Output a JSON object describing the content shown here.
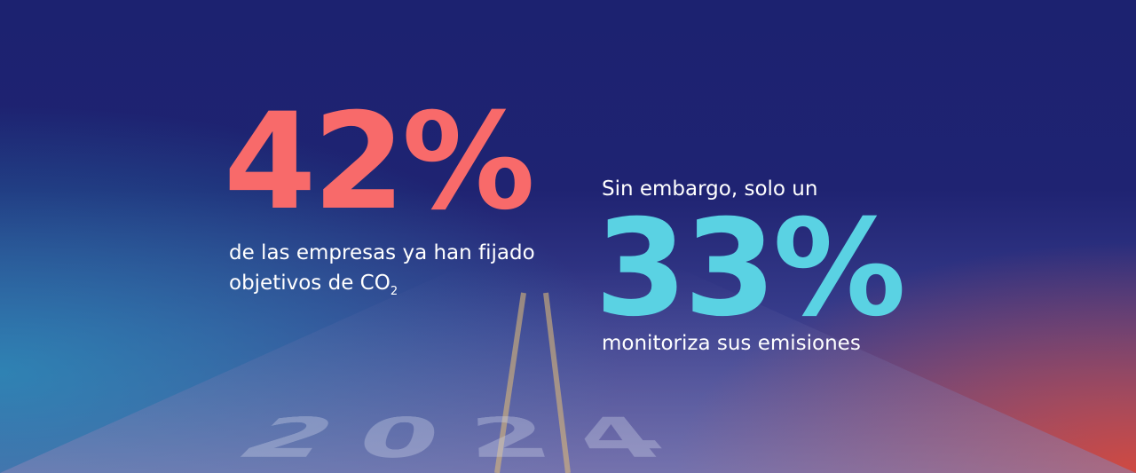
{
  "background_text": "2024",
  "left_stat": {
    "figure": "42%",
    "lines": [
      "de las empresas ya han fijado",
      "objetivos de CO"
    ],
    "subscript": "2"
  },
  "right_stat": {
    "intro": "Sin embargo, solo un",
    "figure": "33%",
    "caption": "monitoriza sus emisiones"
  }
}
